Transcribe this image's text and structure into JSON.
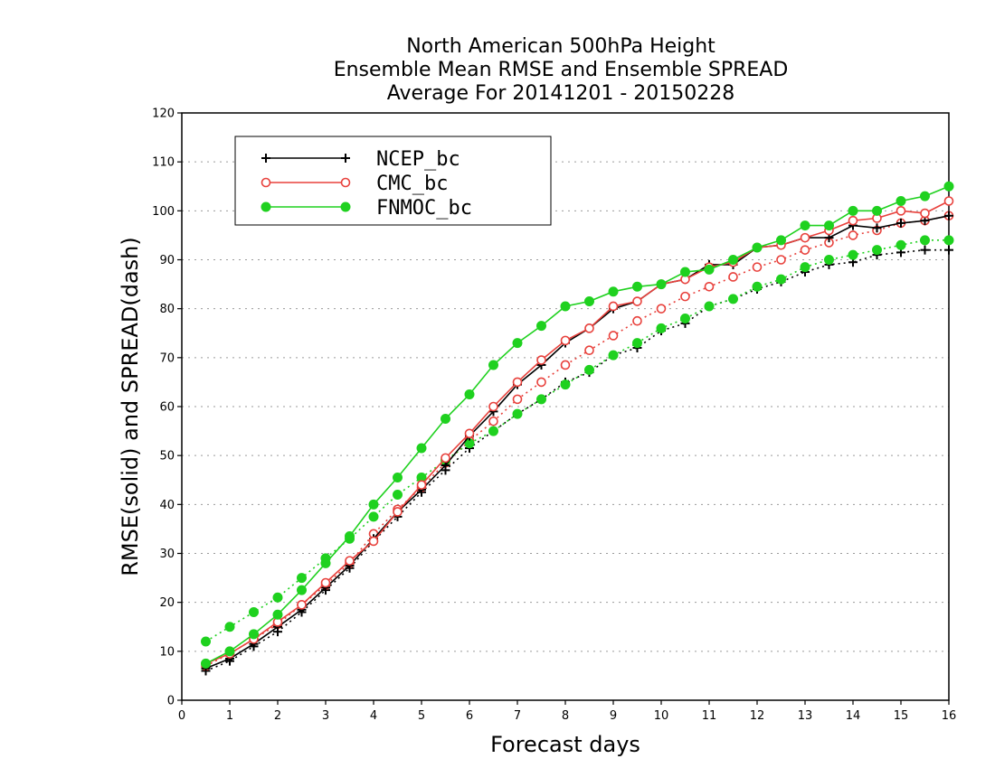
{
  "chart_data": {
    "type": "line",
    "title_lines": [
      "North American 500hPa Height",
      "Ensemble Mean RMSE and Ensemble SPREAD",
      "Average For 20141201 - 20150228"
    ],
    "xlabel": "Forecast days",
    "ylabel": "RMSE(solid) and SPREAD(dash)",
    "xlim": [
      0,
      16
    ],
    "ylim": [
      0,
      120
    ],
    "xticks": [
      0,
      1,
      2,
      3,
      4,
      5,
      6,
      7,
      8,
      9,
      10,
      11,
      12,
      13,
      14,
      15,
      16
    ],
    "yticks": [
      0,
      10,
      20,
      30,
      40,
      50,
      60,
      70,
      80,
      90,
      100,
      110,
      120
    ],
    "grid": true,
    "legend_placement": "top-left",
    "x": [
      0.5,
      1,
      1.5,
      2,
      2.5,
      3,
      3.5,
      4,
      4.5,
      5,
      5.5,
      6,
      6.5,
      7,
      7.5,
      8,
      8.5,
      9,
      9.5,
      10,
      10.5,
      11,
      11.5,
      12,
      12.5,
      13,
      13.5,
      14,
      14.5,
      15,
      15.5,
      16
    ],
    "series": [
      {
        "name": "NCEP_bc",
        "color": "#000000",
        "marker": "plus",
        "rmse": [
          6.5,
          8.5,
          11.5,
          15,
          18.5,
          23,
          27.5,
          33,
          38.5,
          43,
          48,
          54,
          59,
          64.5,
          68.5,
          73,
          76,
          80,
          81.5,
          85,
          86,
          89,
          89,
          92.5,
          93,
          94.5,
          94.5,
          97,
          96.5,
          97.5,
          98,
          99
        ],
        "spread": [
          6,
          8,
          11,
          14,
          18,
          22.5,
          27,
          32.5,
          37.5,
          42.5,
          47,
          51.5,
          55,
          58.5,
          61.5,
          65,
          67,
          70.5,
          72,
          75.5,
          77,
          80.5,
          82,
          84,
          85.5,
          87.5,
          89,
          89.5,
          91,
          91.5,
          92,
          92
        ]
      },
      {
        "name": "CMC_bc",
        "color": "#e8413c",
        "marker": "open-circle",
        "rmse": [
          7.5,
          9.5,
          12.5,
          16,
          19.5,
          24,
          28.5,
          32.5,
          38.5,
          44,
          49.5,
          54.5,
          60,
          65,
          69.5,
          73.5,
          76,
          80.5,
          81.5,
          85,
          86,
          88.5,
          89.5,
          92.5,
          93,
          94.5,
          96,
          98,
          98.5,
          100,
          99.5,
          102
        ],
        "spread": [
          7,
          9.5,
          12.5,
          15.5,
          19.5,
          23.5,
          28,
          34,
          39,
          43.5,
          48.5,
          53,
          57,
          61.5,
          65,
          68.5,
          71.5,
          74.5,
          77.5,
          80,
          82.5,
          84.5,
          86.5,
          88.5,
          90,
          92,
          93.5,
          95,
          96,
          97.5,
          98,
          99
        ]
      },
      {
        "name": "FNMOC_bc",
        "color": "#1fd11f",
        "marker": "filled-circle",
        "rmse": [
          7.5,
          10,
          13.5,
          17.5,
          22.5,
          28,
          33.5,
          40,
          45.5,
          51.5,
          57.5,
          62.5,
          68.5,
          73,
          76.5,
          80.5,
          81.5,
          83.5,
          84.5,
          85,
          87.5,
          88,
          90,
          92.5,
          94,
          97,
          97,
          100,
          100,
          102,
          103,
          105
        ],
        "spread": [
          12,
          15,
          18,
          21,
          25,
          29,
          33,
          37.5,
          42,
          45.5,
          49,
          52.5,
          55,
          58.5,
          61.5,
          64.5,
          67.5,
          70.5,
          73,
          76,
          78,
          80.5,
          82,
          84.5,
          86,
          88.5,
          90,
          91,
          92,
          93,
          94,
          94
        ]
      }
    ]
  }
}
